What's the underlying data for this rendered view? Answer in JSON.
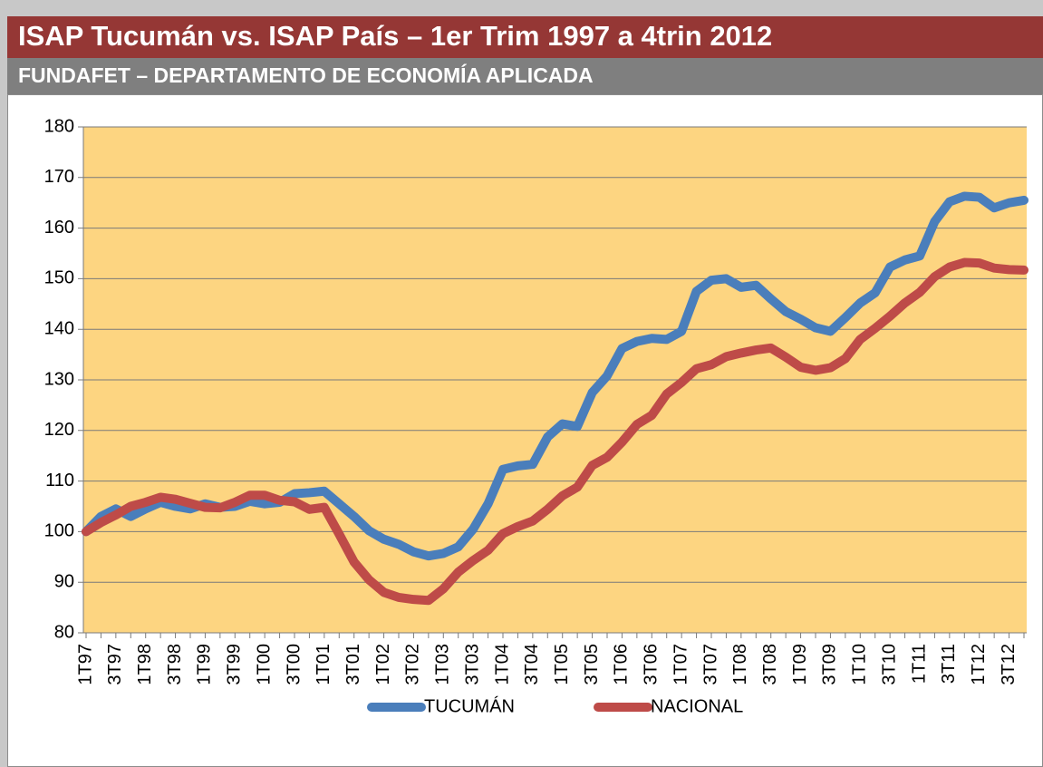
{
  "chart_data": {
    "type": "line",
    "title": "ISAP Tucumán vs. ISAP País – 1er Trim 1997 a 4trin 2012",
    "subtitle": "FUNDAFET – DEPARTAMENTO DE ECONOMÍA APLICADA",
    "categories": [
      "1T97",
      null,
      "3T97",
      null,
      "1T98",
      null,
      "3T98",
      null,
      "1T99",
      null,
      "3T99",
      null,
      "1T00",
      null,
      "3T00",
      null,
      "1T01",
      null,
      "3T01",
      null,
      "1T02",
      null,
      "3T02",
      null,
      "1T03",
      null,
      "3T03",
      null,
      "1T04",
      null,
      "3T04",
      null,
      "1T05",
      null,
      "3T05",
      null,
      "1T06",
      null,
      "3T06",
      null,
      "1T07",
      null,
      "3T07",
      null,
      "1T08",
      null,
      "3T08",
      null,
      "1T09",
      null,
      "3T09",
      null,
      "1T10",
      null,
      "3T10",
      null,
      "1T11",
      null,
      "3T11",
      null,
      "1T12",
      null,
      "3T12",
      null
    ],
    "series": [
      {
        "name": "TUCUMÁN",
        "color": "#4a7ebb",
        "values": [
          100,
          103,
          104.5,
          103,
          104.5,
          105.8,
          105,
          104.5,
          105.5,
          104.8,
          105,
          106,
          105.5,
          105.8,
          107.5,
          107.7,
          108,
          105.5,
          103,
          100.2,
          98.5,
          97.5,
          96,
          95.2,
          95.7,
          97,
          100.5,
          105.5,
          112.3,
          113,
          113.3,
          118.7,
          121.3,
          120.8,
          127.5,
          130.8,
          136.2,
          137.6,
          138.2,
          138,
          139.6,
          147.5,
          149.7,
          150,
          148.3,
          148.7,
          146,
          143.5,
          142,
          140.3,
          139.6,
          142.3,
          145.2,
          147.2,
          152.3,
          153.7,
          154.5,
          161.3,
          165.2,
          166.3,
          166.1,
          164,
          165,
          165.5
        ]
      },
      {
        "name": "NACIONAL",
        "color": "#be4b48",
        "values": [
          100,
          101.8,
          103.3,
          105,
          105.8,
          106.8,
          106.4,
          105.6,
          104.8,
          104.7,
          105.8,
          107.2,
          107.2,
          106.2,
          105.9,
          104.4,
          104.8,
          99.5,
          94,
          90.5,
          88,
          87,
          86.6,
          86.4,
          88.7,
          92,
          94.3,
          96.3,
          99.6,
          101,
          102.1,
          104.4,
          107.1,
          108.8,
          113.1,
          114.7,
          117.7,
          121.2,
          123,
          127.2,
          129.5,
          132.2,
          133,
          134.6,
          135.3,
          135.9,
          136.3,
          134.5,
          132.5,
          131.9,
          132.4,
          134.2,
          138,
          140.2,
          142.6,
          145.2,
          147.3,
          150.4,
          152.3,
          153.2,
          153.1,
          152.1,
          151.8,
          151.7
        ]
      }
    ],
    "ylim": [
      80,
      180
    ],
    "yticks": [
      80,
      90,
      100,
      110,
      120,
      130,
      140,
      150,
      160,
      170,
      180
    ],
    "grid": true,
    "legend": "bottom",
    "plot_background": "#fdd581"
  }
}
